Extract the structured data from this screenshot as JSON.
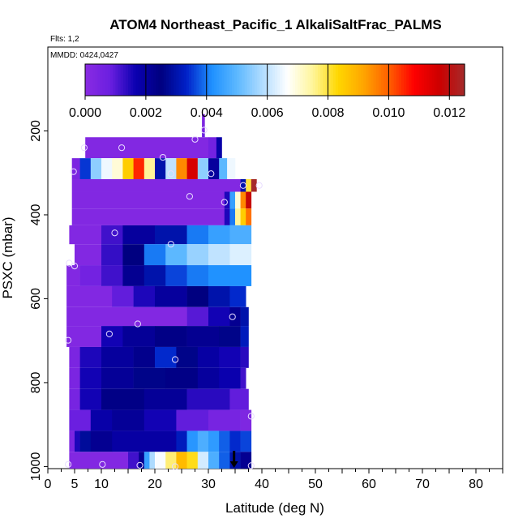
{
  "chart_data": {
    "type": "heatmap",
    "title": "ATOM4 Northeast_Pacific_1 AlkaliSaltFrac_PALMS",
    "flights_label": "Flts: 1,2",
    "dates_label": "MMDD: 0424,0427",
    "xlabel": "Latitude (deg N)",
    "ylabel": "PSXC (mbar)",
    "xlim": [
      0,
      85
    ],
    "ylim": [
      1005,
      0
    ],
    "x_ticks": [
      0,
      5,
      10,
      20,
      30,
      40,
      50,
      60,
      70,
      80
    ],
    "x_tick_labels": [
      "0",
      "5",
      "10",
      "20",
      "30",
      "40",
      "50",
      "60",
      "70",
      "80"
    ],
    "y_ticks": [
      200,
      400,
      600,
      800,
      1000
    ],
    "y_tick_labels": [
      "200",
      "400",
      "600",
      "800",
      "1000"
    ],
    "colorbar": {
      "min": 0,
      "max": 0.0125,
      "ticks": [
        0,
        0.002,
        0.004,
        0.006,
        0.008,
        0.01,
        0.012
      ],
      "tick_labels": [
        "0.000",
        "0.002",
        "0.004",
        "0.006",
        "0.008",
        "0.010",
        "0.012"
      ],
      "colors": [
        "#8a2be2",
        "#6a1fe0",
        "#0a00b0",
        "#000080",
        "#0020c8",
        "#1e90ff",
        "#5cb8ff",
        "#b0dcff",
        "#ffffff",
        "#fff59a",
        "#ffd700",
        "#ffa500",
        "#ff6000",
        "#ff0000",
        "#cc0000",
        "#a52a2a"
      ]
    },
    "rows": [
      {
        "p0": 160,
        "p1": 200,
        "segments": [
          [
            28.8,
            29.3,
            0.0003
          ]
        ]
      },
      {
        "p0": 200,
        "p1": 215,
        "segments": [
          [
            28.8,
            29.3,
            0.0008
          ]
        ]
      },
      {
        "p0": 215,
        "p1": 265,
        "segments": [
          [
            7,
            30,
            0.0002
          ],
          [
            30,
            31.5,
            0.0006
          ],
          [
            31.5,
            32.5,
            0.0018
          ]
        ]
      },
      {
        "p0": 265,
        "p1": 315,
        "segments": [
          [
            4.5,
            6,
            0.0004
          ],
          [
            6,
            8,
            0.0035
          ],
          [
            8,
            10,
            0.0055
          ],
          [
            10,
            12,
            0.0065
          ],
          [
            12,
            14,
            0.007
          ],
          [
            14,
            16,
            0.0085
          ],
          [
            16,
            18,
            0.0105
          ],
          [
            18,
            20,
            0.0075
          ],
          [
            20,
            22,
            0.003
          ],
          [
            22,
            24,
            0.006
          ],
          [
            24,
            26,
            0.0095
          ],
          [
            26,
            28,
            0.0115
          ],
          [
            28,
            30,
            0.0055
          ],
          [
            30,
            32,
            0.002
          ],
          [
            32,
            33.5,
            0.005
          ],
          [
            33.5,
            35,
            0.0065
          ]
        ]
      },
      {
        "p0": 315,
        "p1": 345,
        "segments": [
          [
            4.5,
            36,
            0.0002
          ],
          [
            36,
            37,
            0.003
          ],
          [
            37,
            38,
            0.008
          ],
          [
            38,
            39,
            0.0125
          ]
        ]
      },
      {
        "p0": 345,
        "p1": 385,
        "segments": [
          [
            4.5,
            33,
            0.0002
          ],
          [
            33,
            34,
            0.0015
          ],
          [
            34,
            35,
            0.0045
          ],
          [
            35,
            36,
            0.007
          ],
          [
            36,
            37,
            0.0095
          ],
          [
            37,
            38,
            0.0118
          ]
        ]
      },
      {
        "p0": 385,
        "p1": 425,
        "segments": [
          [
            4.5,
            33,
            0.0002
          ],
          [
            33,
            34,
            0.0015
          ],
          [
            34,
            35,
            0.004
          ],
          [
            35,
            36,
            0.0075
          ],
          [
            36,
            37,
            0.0085
          ],
          [
            37,
            38,
            0.0098
          ]
        ]
      },
      {
        "p0": 425,
        "p1": 470,
        "segments": [
          [
            4,
            10,
            0.0002
          ],
          [
            10,
            14,
            0.0012
          ],
          [
            14,
            20,
            0.002
          ],
          [
            20,
            26,
            0.003
          ],
          [
            26,
            30,
            0.004
          ],
          [
            30,
            34,
            0.0045
          ],
          [
            34,
            38,
            0.0048
          ]
        ]
      },
      {
        "p0": 470,
        "p1": 520,
        "segments": [
          [
            5,
            10,
            0.0002
          ],
          [
            10,
            14,
            0.0013
          ],
          [
            14,
            18,
            0.0025
          ],
          [
            18,
            22,
            0.004
          ],
          [
            22,
            26,
            0.005
          ],
          [
            26,
            30,
            0.0056
          ],
          [
            30,
            34,
            0.006
          ],
          [
            34,
            38,
            0.0063
          ]
        ]
      },
      {
        "p0": 520,
        "p1": 570,
        "segments": [
          [
            3.5,
            6,
            0.0002
          ],
          [
            6,
            10,
            0.0006
          ],
          [
            10,
            14,
            0.0012
          ],
          [
            14,
            18,
            0.0022
          ],
          [
            18,
            22,
            0.003
          ],
          [
            22,
            26,
            0.0036
          ],
          [
            26,
            30,
            0.004
          ],
          [
            30,
            34,
            0.0042
          ],
          [
            34,
            38,
            0.0042
          ]
        ]
      },
      {
        "p0": 570,
        "p1": 620,
        "segments": [
          [
            3.5,
            12,
            0.0002
          ],
          [
            12,
            16,
            0.0009
          ],
          [
            16,
            20,
            0.0015
          ],
          [
            20,
            26,
            0.002
          ],
          [
            26,
            30,
            0.0025
          ],
          [
            30,
            34,
            0.003
          ],
          [
            34,
            37,
            0.0034
          ]
        ]
      },
      {
        "p0": 620,
        "p1": 665,
        "segments": [
          [
            3.5,
            26,
            0.0002
          ],
          [
            26,
            30,
            0.001
          ],
          [
            30,
            34,
            0.0016
          ],
          [
            34,
            36,
            0.0022
          ],
          [
            36,
            37.5,
            0.003
          ]
        ]
      },
      {
        "p0": 665,
        "p1": 715,
        "segments": [
          [
            3.5,
            10,
            0.0002
          ],
          [
            10,
            14,
            0.0016
          ],
          [
            14,
            20,
            0.0021
          ],
          [
            20,
            26,
            0.0024
          ],
          [
            26,
            32,
            0.0022
          ],
          [
            32,
            36,
            0.0026
          ],
          [
            36,
            37.5,
            0.0032
          ]
        ]
      },
      {
        "p0": 715,
        "p1": 765,
        "segments": [
          [
            4,
            6,
            0.0004
          ],
          [
            6,
            10,
            0.0015
          ],
          [
            10,
            16,
            0.002
          ],
          [
            16,
            20,
            0.0023
          ],
          [
            20,
            24,
            0.0034
          ],
          [
            24,
            28,
            0.0026
          ],
          [
            28,
            32,
            0.0019
          ],
          [
            32,
            36,
            0.0016
          ],
          [
            36,
            37.5,
            0.0014
          ]
        ]
      },
      {
        "p0": 765,
        "p1": 815,
        "segments": [
          [
            4,
            6,
            0.0004
          ],
          [
            6,
            10,
            0.0016
          ],
          [
            10,
            16,
            0.0021
          ],
          [
            16,
            22,
            0.0026
          ],
          [
            22,
            28,
            0.0024
          ],
          [
            28,
            32,
            0.002
          ],
          [
            32,
            36,
            0.0017
          ],
          [
            36,
            37,
            0.0012
          ]
        ]
      },
      {
        "p0": 815,
        "p1": 865,
        "segments": [
          [
            4,
            6,
            0.0005
          ],
          [
            6,
            10,
            0.0016
          ],
          [
            10,
            18,
            0.0024
          ],
          [
            18,
            26,
            0.0021
          ],
          [
            26,
            34,
            0.0014
          ],
          [
            34,
            37.5,
            0.0009
          ]
        ]
      },
      {
        "p0": 865,
        "p1": 915,
        "segments": [
          [
            4,
            8,
            0.0008
          ],
          [
            8,
            12,
            0.0018
          ],
          [
            12,
            18,
            0.0021
          ],
          [
            18,
            24,
            0.0016
          ],
          [
            24,
            30,
            0.0009
          ],
          [
            30,
            36,
            0.0005
          ],
          [
            36,
            38,
            0.0003
          ]
        ]
      },
      {
        "p0": 915,
        "p1": 965,
        "segments": [
          [
            4,
            5,
            0.0004
          ],
          [
            5,
            6,
            0.0015
          ],
          [
            6,
            8,
            0.0028
          ],
          [
            8,
            12,
            0.0022
          ],
          [
            12,
            24,
            0.0019
          ],
          [
            24,
            26,
            0.0032
          ],
          [
            26,
            28,
            0.0043
          ],
          [
            28,
            30,
            0.0048
          ],
          [
            30,
            32,
            0.0044
          ],
          [
            32,
            34,
            0.0038
          ],
          [
            34,
            36,
            0.0034
          ],
          [
            36,
            38,
            0.0036
          ]
        ]
      },
      {
        "p0": 965,
        "p1": 1005,
        "segments": [
          [
            4,
            15,
            0.0002
          ],
          [
            15,
            17,
            0.0012
          ],
          [
            17,
            18,
            0.0022
          ],
          [
            18,
            19,
            0.0045
          ],
          [
            19,
            20,
            0.0058
          ],
          [
            20,
            22,
            0.0066
          ],
          [
            22,
            24,
            0.0077
          ],
          [
            24,
            26,
            0.0088
          ],
          [
            26,
            28,
            0.0082
          ],
          [
            28,
            30,
            0.0062
          ],
          [
            30,
            32,
            0.0048
          ],
          [
            32,
            34,
            0.0038
          ],
          [
            34,
            36,
            0.003
          ],
          [
            36,
            38,
            0.0022
          ]
        ]
      }
    ],
    "markers": [
      {
        "lat": 6.8,
        "p": 240
      },
      {
        "lat": 13.8,
        "p": 240
      },
      {
        "lat": 21.5,
        "p": 263
      },
      {
        "lat": 27.5,
        "p": 220
      },
      {
        "lat": 29.2,
        "p": 198
      },
      {
        "lat": 4.8,
        "p": 297
      },
      {
        "lat": 23,
        "p": 302
      },
      {
        "lat": 30.5,
        "p": 302
      },
      {
        "lat": 36.5,
        "p": 330
      },
      {
        "lat": 39.5,
        "p": 330
      },
      {
        "lat": 26.5,
        "p": 356
      },
      {
        "lat": 33,
        "p": 370
      },
      {
        "lat": 12.5,
        "p": 443
      },
      {
        "lat": 23,
        "p": 470
      },
      {
        "lat": 4,
        "p": 515
      },
      {
        "lat": 5,
        "p": 522
      },
      {
        "lat": 34.5,
        "p": 643
      },
      {
        "lat": 16.8,
        "p": 660
      },
      {
        "lat": 11.5,
        "p": 684
      },
      {
        "lat": 3.8,
        "p": 699
      },
      {
        "lat": 23.8,
        "p": 745
      },
      {
        "lat": 38,
        "p": 880
      },
      {
        "lat": 3.8,
        "p": 995
      },
      {
        "lat": 10.2,
        "p": 995
      },
      {
        "lat": 17.2,
        "p": 997
      },
      {
        "lat": 23.8,
        "p": 1000
      },
      {
        "lat": 38,
        "p": 998
      }
    ],
    "arrow_lat": 34.8
  }
}
